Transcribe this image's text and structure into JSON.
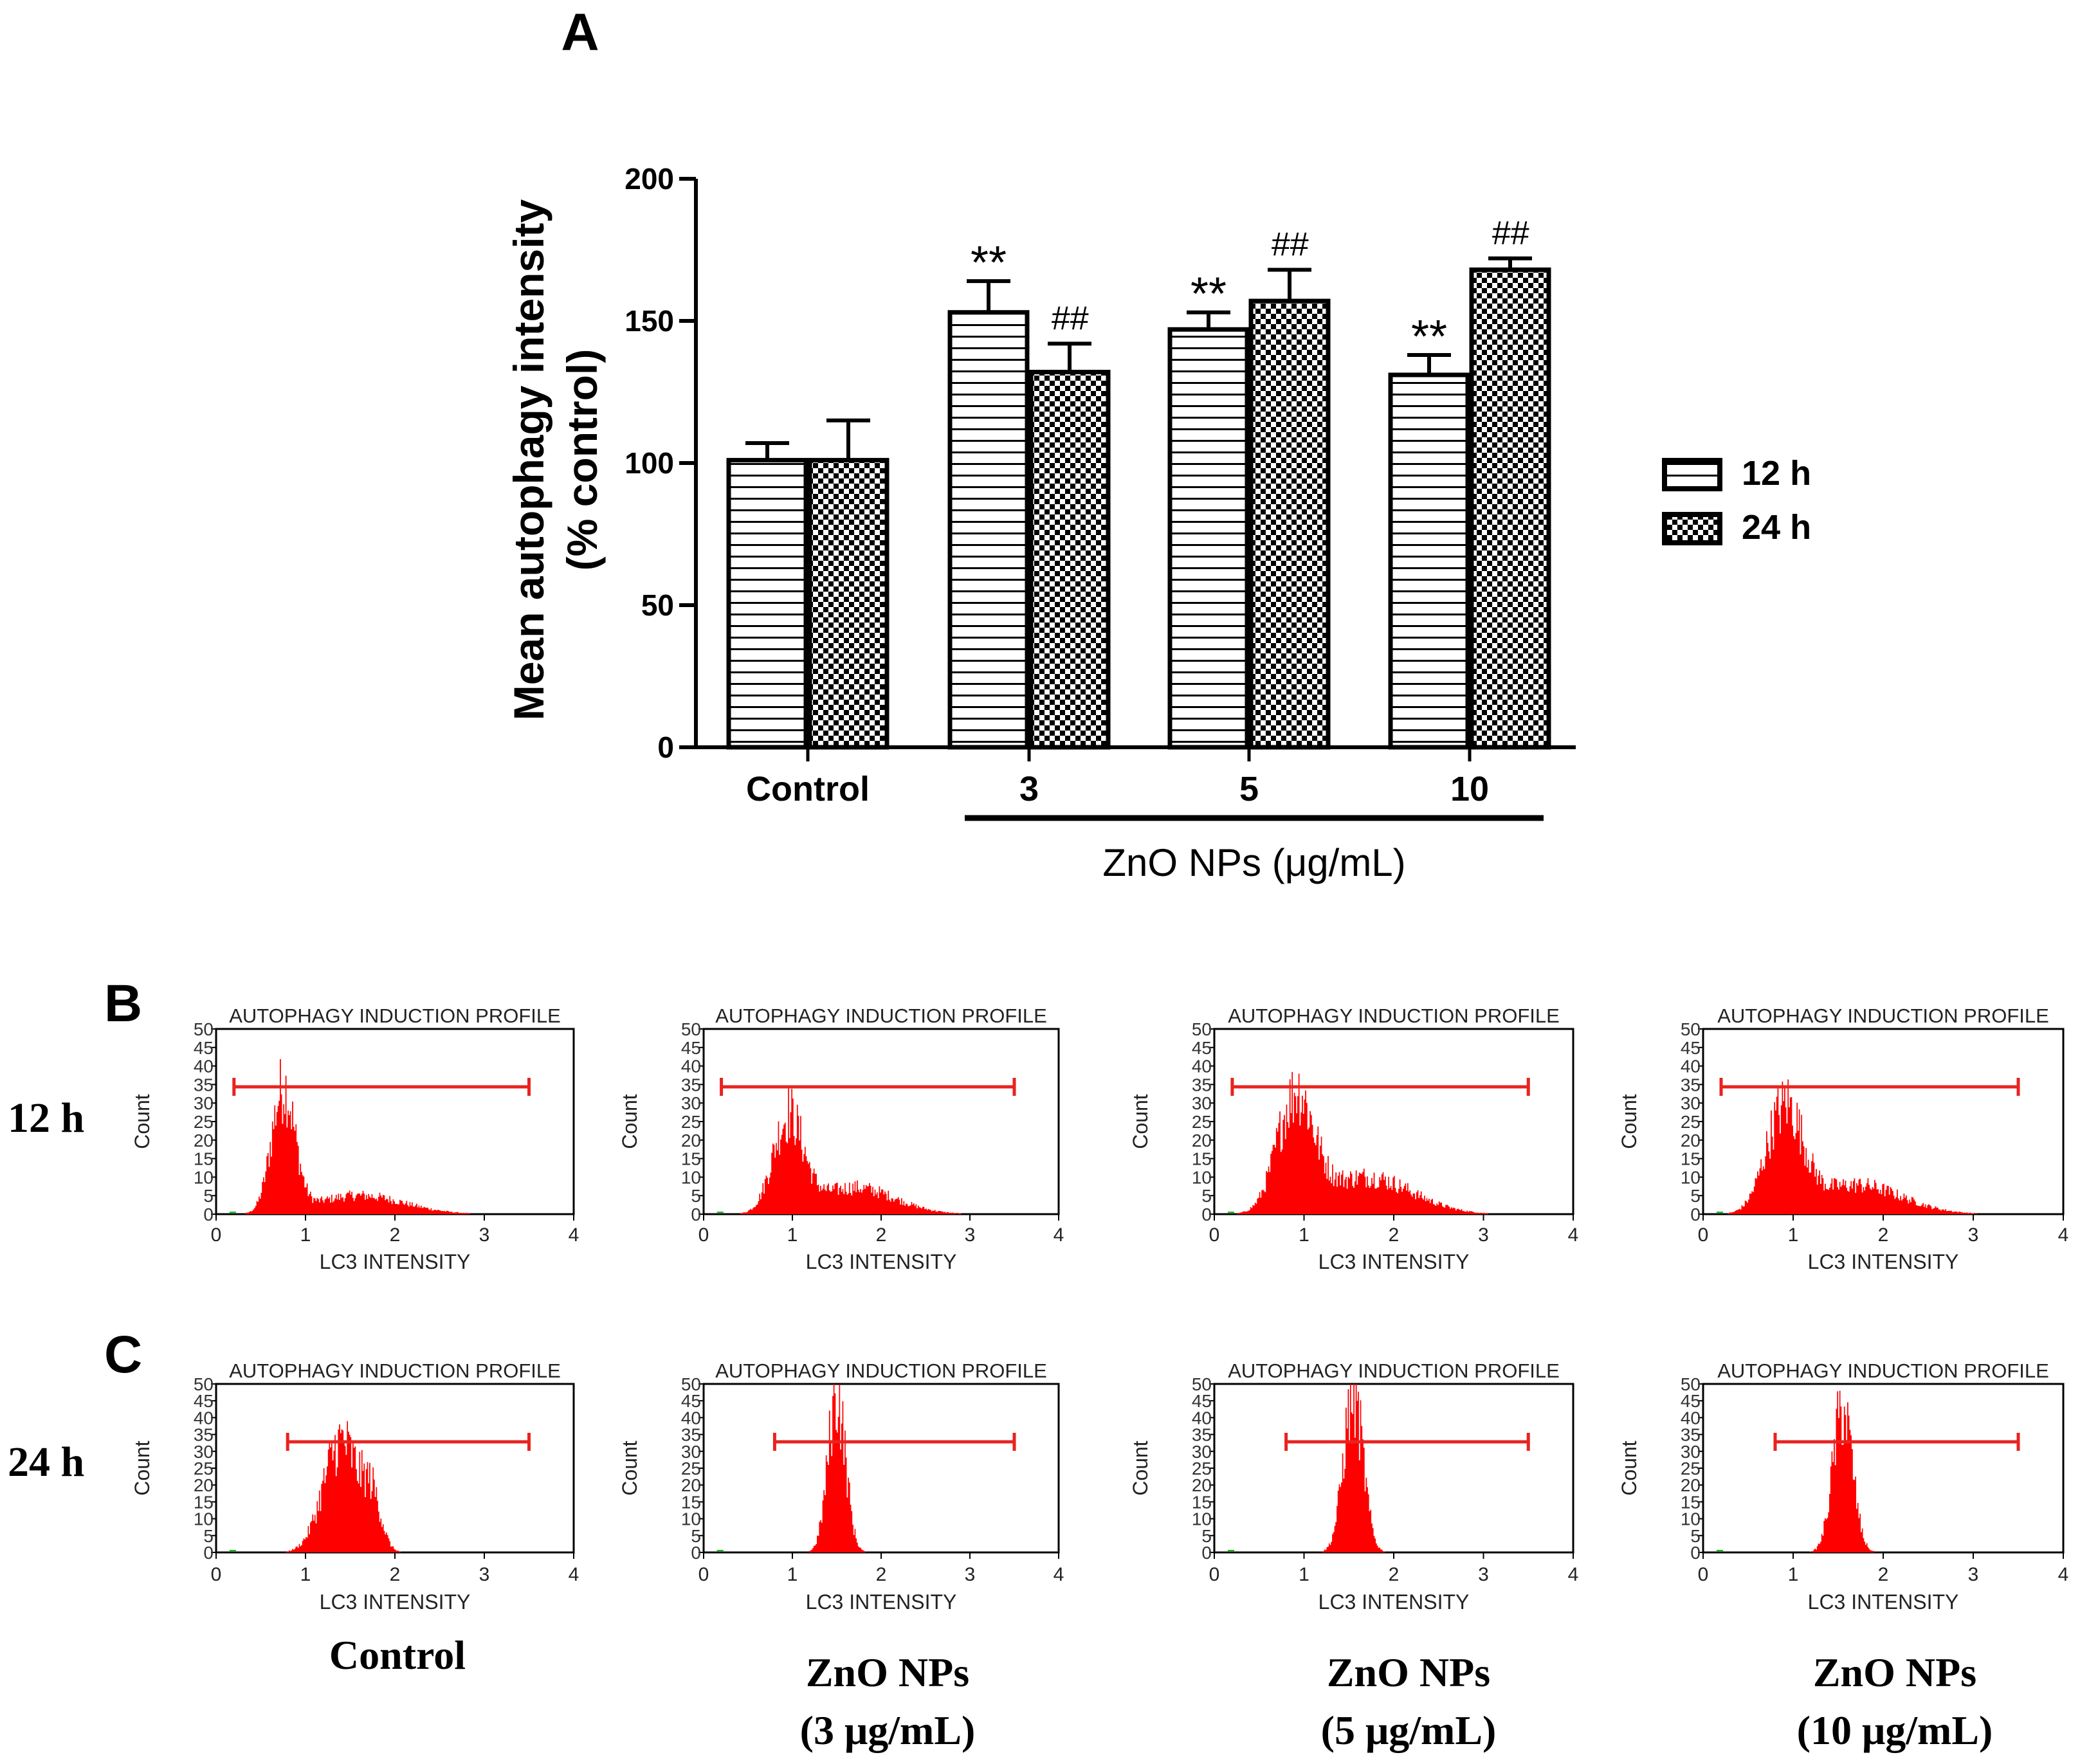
{
  "chart_data": [
    {
      "panel": "A",
      "type": "bar",
      "categories": [
        "Control",
        "3",
        "5",
        "10"
      ],
      "series": [
        {
          "name": "12 h",
          "values": [
            101,
            153,
            147,
            131
          ],
          "errors": [
            6,
            11,
            6,
            7
          ],
          "marks": [
            "",
            "**",
            "**",
            "**"
          ]
        },
        {
          "name": "24 h",
          "values": [
            101,
            132,
            157,
            168
          ],
          "errors": [
            14,
            10,
            11,
            4
          ],
          "marks": [
            "",
            "##",
            "##",
            "##"
          ]
        }
      ],
      "ylabel": "Mean autophagy intensity",
      "ylabel2": "(% control)",
      "xlabel": "ZnO NPs (μg/mL)",
      "ylim": [
        0,
        200
      ],
      "yticks": [
        0,
        50,
        100,
        150,
        200
      ]
    },
    {
      "type": "histogram",
      "title": "AUTOPHAGY INDUCTION PROFILE",
      "xlabel": "LC3 INTENSITY",
      "ylabel": "Count",
      "xlim": [
        0,
        4
      ],
      "xticks": [
        0,
        1,
        2,
        3,
        4
      ],
      "ylim": [
        0,
        50
      ],
      "yticks": [
        0,
        5,
        10,
        15,
        20,
        25,
        30,
        35,
        40,
        45,
        50
      ],
      "marker_range": {
        "12 h": [
          0.2,
          3.5
        ],
        "24 h": [
          0.8,
          3.5
        ]
      },
      "histograms": [
        {
          "row": "12 h",
          "label": "Control",
          "peak_x": 0.75,
          "peak_count": 38,
          "main_sd": 0.13,
          "tail_level": 0.15,
          "tail_mean": 1.6,
          "tail_sd": 0.5
        },
        {
          "row": "12 h",
          "label": "ZnO NPs (3 μg/mL)",
          "peak_x": 0.95,
          "peak_count": 30,
          "main_sd": 0.17,
          "tail_level": 0.28,
          "tail_mean": 1.7,
          "tail_sd": 0.45
        },
        {
          "row": "12 h",
          "label": "ZnO NPs (5 μg/mL)",
          "peak_x": 0.9,
          "peak_count": 37,
          "main_sd": 0.2,
          "tail_level": 0.32,
          "tail_mean": 1.7,
          "tail_sd": 0.5
        },
        {
          "row": "12 h",
          "label": "ZnO NPs (10 μg/mL)",
          "peak_x": 0.9,
          "peak_count": 33,
          "main_sd": 0.2,
          "tail_level": 0.28,
          "tail_mean": 1.7,
          "tail_sd": 0.5
        },
        {
          "row": "24 h",
          "label": "Control",
          "peak_x": 1.4,
          "peak_count": 40,
          "main_sd": 0.2,
          "tail_level": 0.4,
          "tail_mean": 1.75,
          "tail_sd": 0.1
        },
        {
          "row": "24 h",
          "label": "ZnO NPs (3 μg/mL)",
          "peak_x": 1.5,
          "peak_count": 50,
          "main_sd": 0.1,
          "tail_level": 0.0,
          "tail_mean": 1.5,
          "tail_sd": 0.3
        },
        {
          "row": "24 h",
          "label": "ZnO NPs (5 μg/mL)",
          "peak_x": 1.55,
          "peak_count": 50,
          "main_sd": 0.11,
          "tail_level": 0.0,
          "tail_mean": 1.5,
          "tail_sd": 0.3
        },
        {
          "row": "24 h",
          "label": "ZnO NPs (10 μg/mL)",
          "peak_x": 1.55,
          "peak_count": 46,
          "main_sd": 0.11,
          "tail_level": 0.0,
          "tail_mean": 1.5,
          "tail_sd": 0.3
        }
      ]
    }
  ],
  "labels": {
    "panel_a": "A",
    "panel_b": "B",
    "panel_c": "C",
    "row_12h": "12 h",
    "row_24h": "24 h",
    "col_control": "Control",
    "col_zno": "ZnO NPs",
    "col_3": "(3 μg/mL)",
    "col_5": "(5 μg/mL)",
    "col_10": "(10 μg/mL)"
  },
  "colors": {
    "hist_fill": "#ff0000",
    "marker": "#e8231f",
    "axis": "#000000"
  }
}
